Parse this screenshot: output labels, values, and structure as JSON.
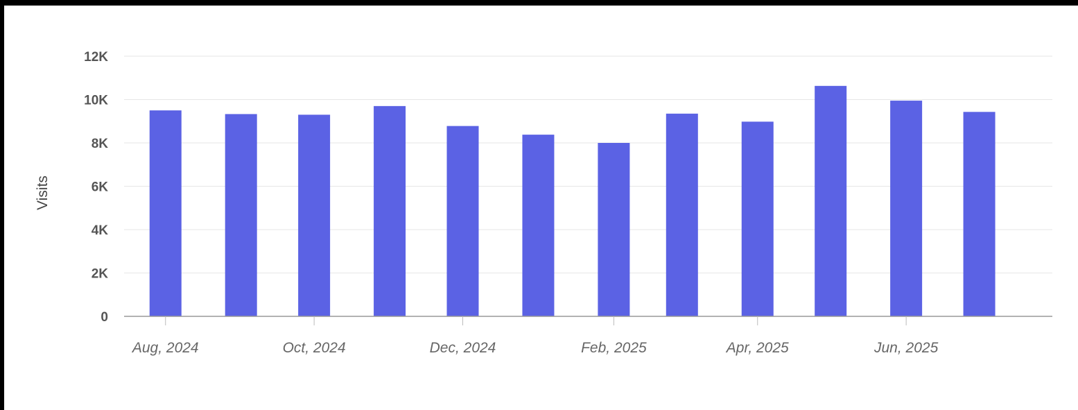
{
  "chart_data": {
    "type": "bar",
    "title": "",
    "xlabel": "",
    "ylabel": "Visits",
    "ylim": [
      0,
      12000
    ],
    "y_ticks": [
      {
        "value": 0,
        "label": "0"
      },
      {
        "value": 2000,
        "label": "2K"
      },
      {
        "value": 4000,
        "label": "4K"
      },
      {
        "value": 6000,
        "label": "6K"
      },
      {
        "value": 8000,
        "label": "8K"
      },
      {
        "value": 10000,
        "label": "10K"
      },
      {
        "value": 12000,
        "label": "12K"
      }
    ],
    "x_ticks": [
      {
        "date": "2024-08-01",
        "label": "Aug, 2024"
      },
      {
        "date": "2024-10-01",
        "label": "Oct, 2024"
      },
      {
        "date": "2024-12-01",
        "label": "Dec, 2024"
      },
      {
        "date": "2025-02-01",
        "label": "Feb, 2025"
      },
      {
        "date": "2025-04-01",
        "label": "Apr, 2025"
      },
      {
        "date": "2025-06-01",
        "label": "Jun, 2025"
      }
    ],
    "x_range": [
      "2024-07-15",
      "2025-07-31"
    ],
    "x": [
      "2024-08-01",
      "2024-09-01",
      "2024-10-01",
      "2024-11-01",
      "2024-12-01",
      "2025-01-01",
      "2025-02-01",
      "2025-03-01",
      "2025-04-01",
      "2025-05-01",
      "2025-06-01",
      "2025-07-01"
    ],
    "values": [
      9500,
      9330,
      9300,
      9700,
      8780,
      8380,
      8000,
      9350,
      8980,
      10630,
      9950,
      9430
    ],
    "bar_color": "#5b62e4",
    "grid": true,
    "legend": "none"
  }
}
